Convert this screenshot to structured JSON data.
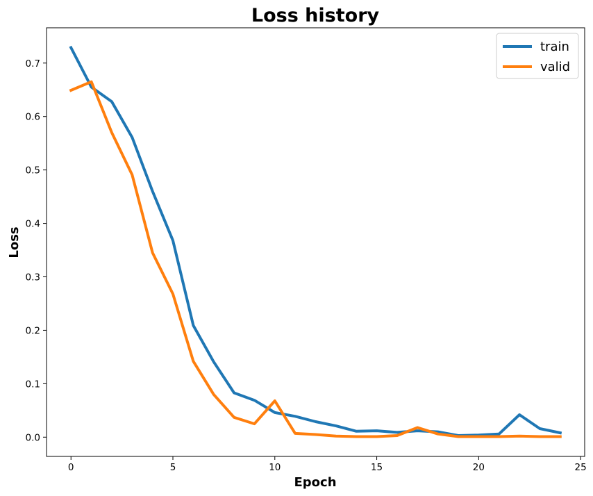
{
  "chart_data": {
    "type": "line",
    "title": "Loss history",
    "xlabel": "Epoch",
    "ylabel": "Loss",
    "xlim": [
      -1.2,
      25.2
    ],
    "ylim": [
      -0.036,
      0.766
    ],
    "xticks": [
      0,
      5,
      10,
      15,
      20,
      25
    ],
    "yticks": [
      0.0,
      0.1,
      0.2,
      0.3,
      0.4,
      0.5,
      0.6,
      0.7
    ],
    "xtick_labels": [
      "0",
      "5",
      "10",
      "15",
      "20",
      "25"
    ],
    "ytick_labels": [
      "0.0",
      "0.1",
      "0.2",
      "0.3",
      "0.4",
      "0.5",
      "0.6",
      "0.7"
    ],
    "grid": false,
    "legend_position": "top-right",
    "x": [
      0,
      1,
      2,
      3,
      4,
      5,
      6,
      7,
      8,
      9,
      10,
      11,
      12,
      13,
      14,
      15,
      16,
      17,
      18,
      19,
      20,
      21,
      22,
      23,
      24
    ],
    "series": [
      {
        "name": "train",
        "color": "#1f77b4",
        "values": [
          0.729,
          0.655,
          0.628,
          0.561,
          0.46,
          0.368,
          0.209,
          0.141,
          0.083,
          0.069,
          0.046,
          0.039,
          0.029,
          0.021,
          0.011,
          0.012,
          0.009,
          0.012,
          0.01,
          0.003,
          0.004,
          0.006,
          0.042,
          0.016,
          0.008
        ]
      },
      {
        "name": "valid",
        "color": "#ff7f0e",
        "values": [
          0.649,
          0.665,
          0.57,
          0.491,
          0.345,
          0.268,
          0.142,
          0.08,
          0.037,
          0.025,
          0.068,
          0.007,
          0.005,
          0.002,
          0.001,
          0.001,
          0.003,
          0.018,
          0.006,
          0.001,
          0.001,
          0.001,
          0.002,
          0.001,
          0.001
        ]
      }
    ]
  }
}
